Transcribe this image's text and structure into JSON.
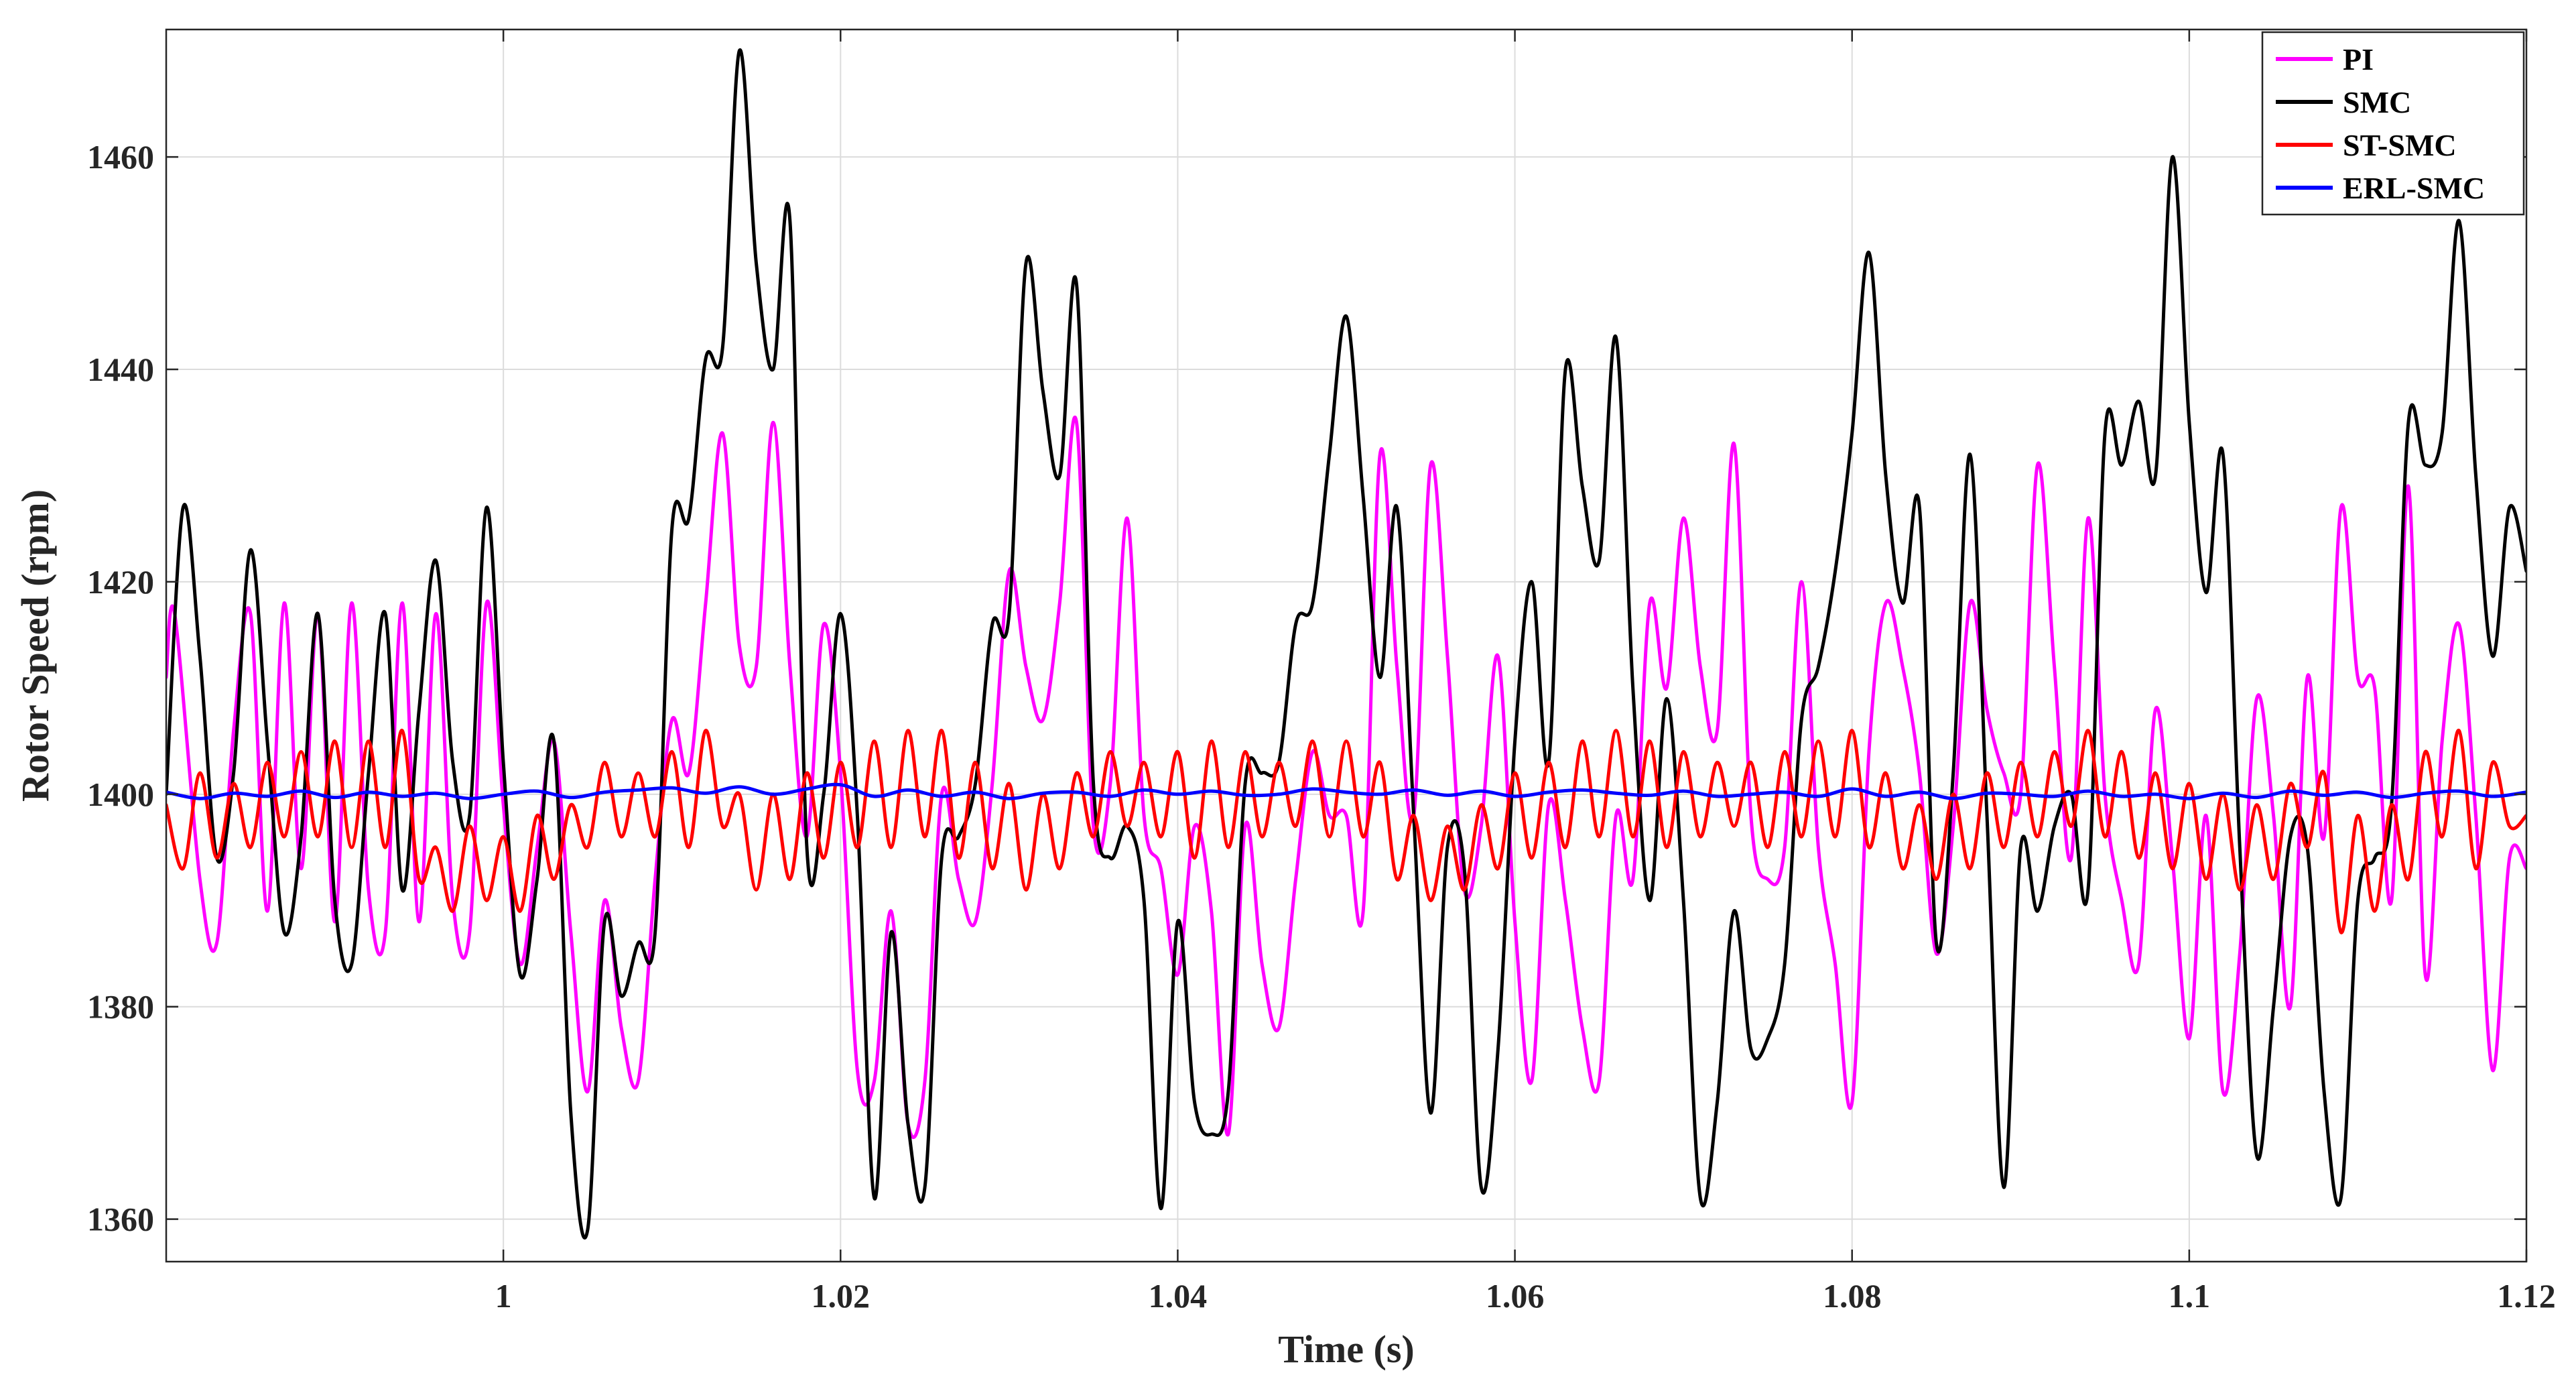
{
  "chart_data": {
    "type": "line",
    "xlabel": "Time (s)",
    "ylabel": "Rotor Speed (rpm)",
    "xlim": [
      0.98,
      1.12
    ],
    "ylim": [
      1356,
      1472
    ],
    "xticks": [
      1,
      1.02,
      1.04,
      1.06,
      1.08,
      1.1,
      1.12
    ],
    "xtick_labels": [
      "1",
      "1.02",
      "1.04",
      "1.06",
      "1.08",
      "1.1",
      "1.12"
    ],
    "yticks": [
      1360,
      1380,
      1400,
      1420,
      1440,
      1460
    ],
    "ytick_labels": [
      "1360",
      "1380",
      "1400",
      "1420",
      "1440",
      "1460"
    ],
    "grid": true,
    "legend_position": "top-right",
    "series": [
      {
        "name": "PI",
        "color": "#ff00ff",
        "x": [
          0.98,
          0.9805,
          0.982,
          0.983,
          0.984,
          0.985,
          0.986,
          0.987,
          0.988,
          0.989,
          0.99,
          0.991,
          0.992,
          0.993,
          0.994,
          0.995,
          0.996,
          0.997,
          0.998,
          0.999,
          1.0,
          1.001,
          1.002,
          1.003,
          1.004,
          1.005,
          1.006,
          1.007,
          1.008,
          1.009,
          1.01,
          1.011,
          1.012,
          1.013,
          1.014,
          1.015,
          1.016,
          1.017,
          1.018,
          1.019,
          1.02,
          1.021,
          1.022,
          1.023,
          1.024,
          1.025,
          1.026,
          1.027,
          1.028,
          1.029,
          1.03,
          1.031,
          1.032,
          1.033,
          1.034,
          1.035,
          1.036,
          1.037,
          1.038,
          1.039,
          1.04,
          1.041,
          1.042,
          1.043,
          1.044,
          1.045,
          1.046,
          1.047,
          1.048,
          1.049,
          1.05,
          1.051,
          1.052,
          1.053,
          1.054,
          1.055,
          1.056,
          1.057,
          1.058,
          1.059,
          1.06,
          1.061,
          1.062,
          1.063,
          1.064,
          1.065,
          1.066,
          1.067,
          1.068,
          1.069,
          1.07,
          1.071,
          1.072,
          1.073,
          1.074,
          1.075,
          1.076,
          1.077,
          1.078,
          1.079,
          1.08,
          1.081,
          1.082,
          1.083,
          1.084,
          1.085,
          1.086,
          1.087,
          1.088,
          1.089,
          1.09,
          1.091,
          1.092,
          1.093,
          1.094,
          1.095,
          1.096,
          1.097,
          1.098,
          1.099,
          1.1,
          1.101,
          1.102,
          1.103,
          1.104,
          1.105,
          1.106,
          1.107,
          1.108,
          1.109,
          1.11,
          1.111,
          1.112,
          1.113,
          1.114,
          1.115,
          1.116,
          1.117,
          1.118,
          1.119,
          1.12
        ],
        "y": [
          1411,
          1417,
          1392,
          1386,
          1406,
          1417,
          1389,
          1418,
          1393,
          1417,
          1388,
          1418,
          1391,
          1387,
          1418,
          1388,
          1417,
          1390,
          1387,
          1418,
          1399,
          1384,
          1395,
          1405,
          1387,
          1372,
          1390,
          1378,
          1373,
          1392,
          1407,
          1402,
          1418,
          1434,
          1414,
          1412,
          1435,
          1412,
          1396,
          1416,
          1402,
          1374,
          1373,
          1389,
          1369,
          1373,
          1400,
          1392,
          1388,
          1401,
          1421,
          1412,
          1407,
          1418,
          1435,
          1397,
          1401,
          1426,
          1398,
          1393,
          1383,
          1397,
          1389,
          1368,
          1397,
          1384,
          1378,
          1392,
          1404,
          1398,
          1398,
          1389,
          1432,
          1412,
          1398,
          1431,
          1413,
          1391,
          1397,
          1413,
          1388,
          1373,
          1399,
          1390,
          1378,
          1373,
          1398,
          1392,
          1418,
          1410,
          1426,
          1412,
          1406,
          1433,
          1398,
          1392,
          1395,
          1420,
          1395,
          1384,
          1371,
          1404,
          1418,
          1412,
          1402,
          1385,
          1397,
          1418,
          1408,
          1402,
          1400,
          1431,
          1412,
          1394,
          1426,
          1400,
          1390,
          1384,
          1408,
          1394,
          1377,
          1398,
          1372,
          1385,
          1409,
          1398,
          1380,
          1411,
          1396,
          1427,
          1411,
          1410,
          1390,
          1429,
          1383,
          1405,
          1416,
          1398,
          1374,
          1394,
          1393
        ]
      },
      {
        "name": "SMC",
        "color": "#000000",
        "x": [
          0.98,
          0.981,
          0.982,
          0.983,
          0.984,
          0.985,
          0.986,
          0.987,
          0.988,
          0.989,
          0.99,
          0.991,
          0.992,
          0.993,
          0.994,
          0.995,
          0.996,
          0.997,
          0.998,
          0.999,
          1.0,
          1.001,
          1.002,
          1.003,
          1.004,
          1.005,
          1.006,
          1.007,
          1.008,
          1.009,
          1.01,
          1.011,
          1.012,
          1.013,
          1.014,
          1.015,
          1.016,
          1.017,
          1.018,
          1.019,
          1.02,
          1.021,
          1.022,
          1.023,
          1.024,
          1.025,
          1.026,
          1.027,
          1.028,
          1.029,
          1.03,
          1.031,
          1.032,
          1.033,
          1.034,
          1.035,
          1.036,
          1.037,
          1.038,
          1.039,
          1.04,
          1.041,
          1.042,
          1.043,
          1.044,
          1.045,
          1.046,
          1.047,
          1.048,
          1.049,
          1.05,
          1.051,
          1.052,
          1.053,
          1.054,
          1.055,
          1.056,
          1.057,
          1.058,
          1.059,
          1.06,
          1.061,
          1.062,
          1.063,
          1.064,
          1.065,
          1.066,
          1.067,
          1.068,
          1.069,
          1.07,
          1.071,
          1.072,
          1.073,
          1.074,
          1.075,
          1.076,
          1.077,
          1.078,
          1.079,
          1.08,
          1.081,
          1.082,
          1.083,
          1.084,
          1.085,
          1.086,
          1.087,
          1.088,
          1.089,
          1.09,
          1.091,
          1.092,
          1.093,
          1.094,
          1.095,
          1.096,
          1.097,
          1.098,
          1.099,
          1.1,
          1.101,
          1.102,
          1.103,
          1.104,
          1.105,
          1.106,
          1.107,
          1.108,
          1.109,
          1.11,
          1.111,
          1.112,
          1.113,
          1.114,
          1.115,
          1.116,
          1.117,
          1.118,
          1.119,
          1.12
        ],
        "y": [
          1400,
          1427,
          1413,
          1394,
          1402,
          1423,
          1405,
          1387,
          1396,
          1417,
          1390,
          1384,
          1402,
          1417,
          1391,
          1408,
          1422,
          1403,
          1398,
          1427,
          1403,
          1383,
          1392,
          1405,
          1370,
          1359,
          1388,
          1381,
          1386,
          1387,
          1425,
          1426,
          1441,
          1442,
          1470,
          1450,
          1440,
          1454,
          1395,
          1400,
          1417,
          1398,
          1362,
          1387,
          1369,
          1363,
          1394,
          1396,
          1401,
          1416,
          1417,
          1450,
          1438,
          1430,
          1448,
          1401,
          1394,
          1397,
          1390,
          1361,
          1388,
          1371,
          1368,
          1372,
          1401,
          1402,
          1403,
          1416,
          1418,
          1432,
          1445,
          1428,
          1411,
          1427,
          1398,
          1370,
          1395,
          1393,
          1363,
          1376,
          1405,
          1420,
          1403,
          1440,
          1429,
          1422,
          1443,
          1410,
          1390,
          1409,
          1390,
          1362,
          1371,
          1389,
          1376,
          1377,
          1384,
          1407,
          1412,
          1421,
          1434,
          1451,
          1430,
          1418,
          1427,
          1386,
          1402,
          1432,
          1398,
          1363,
          1395,
          1389,
          1397,
          1400,
          1391,
          1434,
          1431,
          1437,
          1430,
          1460,
          1435,
          1419,
          1432,
          1395,
          1366,
          1380,
          1396,
          1395,
          1372,
          1362,
          1390,
          1394,
          1399,
          1435,
          1431,
          1434,
          1454,
          1430,
          1413,
          1427,
          1421
        ]
      },
      {
        "name": "ST-SMC",
        "color": "#ff0000",
        "x": [
          0.98,
          0.981,
          0.982,
          0.983,
          0.984,
          0.985,
          0.986,
          0.987,
          0.988,
          0.989,
          0.99,
          0.991,
          0.992,
          0.993,
          0.994,
          0.995,
          0.996,
          0.997,
          0.998,
          0.999,
          1.0,
          1.001,
          1.002,
          1.003,
          1.004,
          1.005,
          1.006,
          1.007,
          1.008,
          1.009,
          1.01,
          1.011,
          1.012,
          1.013,
          1.014,
          1.015,
          1.016,
          1.017,
          1.018,
          1.019,
          1.02,
          1.021,
          1.022,
          1.023,
          1.024,
          1.025,
          1.026,
          1.027,
          1.028,
          1.029,
          1.03,
          1.031,
          1.032,
          1.033,
          1.034,
          1.035,
          1.036,
          1.037,
          1.038,
          1.039,
          1.04,
          1.041,
          1.042,
          1.043,
          1.044,
          1.045,
          1.046,
          1.047,
          1.048,
          1.049,
          1.05,
          1.051,
          1.052,
          1.053,
          1.054,
          1.055,
          1.056,
          1.057,
          1.058,
          1.059,
          1.06,
          1.061,
          1.062,
          1.063,
          1.064,
          1.065,
          1.066,
          1.067,
          1.068,
          1.069,
          1.07,
          1.071,
          1.072,
          1.073,
          1.074,
          1.075,
          1.076,
          1.077,
          1.078,
          1.079,
          1.08,
          1.081,
          1.082,
          1.083,
          1.084,
          1.085,
          1.086,
          1.087,
          1.088,
          1.089,
          1.09,
          1.091,
          1.092,
          1.093,
          1.094,
          1.095,
          1.096,
          1.097,
          1.098,
          1.099,
          1.1,
          1.101,
          1.102,
          1.103,
          1.104,
          1.105,
          1.106,
          1.107,
          1.108,
          1.109,
          1.11,
          1.111,
          1.112,
          1.113,
          1.114,
          1.115,
          1.116,
          1.117,
          1.118,
          1.119,
          1.12
        ],
        "y": [
          1399,
          1393,
          1402,
          1394,
          1401,
          1395,
          1403,
          1396,
          1404,
          1396,
          1405,
          1395,
          1405,
          1395,
          1406,
          1392,
          1395,
          1389,
          1397,
          1390,
          1396,
          1389,
          1398,
          1392,
          1399,
          1395,
          1403,
          1396,
          1402,
          1396,
          1404,
          1395,
          1406,
          1397,
          1400,
          1391,
          1400,
          1392,
          1402,
          1394,
          1403,
          1395,
          1405,
          1395,
          1406,
          1396,
          1406,
          1394,
          1403,
          1393,
          1401,
          1391,
          1400,
          1393,
          1402,
          1396,
          1404,
          1397,
          1403,
          1396,
          1404,
          1394,
          1405,
          1395,
          1404,
          1396,
          1403,
          1397,
          1405,
          1396,
          1405,
          1396,
          1403,
          1392,
          1398,
          1390,
          1397,
          1391,
          1399,
          1393,
          1402,
          1394,
          1403,
          1395,
          1405,
          1396,
          1406,
          1396,
          1405,
          1395,
          1404,
          1396,
          1403,
          1397,
          1403,
          1395,
          1404,
          1396,
          1405,
          1396,
          1406,
          1395,
          1402,
          1393,
          1399,
          1392,
          1400,
          1393,
          1402,
          1395,
          1403,
          1396,
          1404,
          1397,
          1406,
          1396,
          1404,
          1394,
          1402,
          1393,
          1401,
          1392,
          1400,
          1391,
          1399,
          1392,
          1401,
          1395,
          1402,
          1387,
          1398,
          1389,
          1399,
          1392,
          1404,
          1396,
          1406,
          1393,
          1403,
          1397,
          1398
        ]
      },
      {
        "name": "ERL-SMC",
        "color": "#0000ff",
        "x": [
          0.98,
          0.982,
          0.984,
          0.986,
          0.988,
          0.99,
          0.992,
          0.994,
          0.996,
          0.998,
          1.0,
          1.002,
          1.004,
          1.006,
          1.008,
          1.01,
          1.012,
          1.014,
          1.016,
          1.018,
          1.02,
          1.022,
          1.024,
          1.026,
          1.028,
          1.03,
          1.032,
          1.034,
          1.036,
          1.038,
          1.04,
          1.042,
          1.044,
          1.046,
          1.048,
          1.05,
          1.052,
          1.054,
          1.056,
          1.058,
          1.06,
          1.062,
          1.064,
          1.066,
          1.068,
          1.07,
          1.072,
          1.074,
          1.076,
          1.078,
          1.08,
          1.082,
          1.084,
          1.086,
          1.088,
          1.09,
          1.092,
          1.094,
          1.096,
          1.098,
          1.1,
          1.102,
          1.104,
          1.106,
          1.108,
          1.11,
          1.112,
          1.114,
          1.116,
          1.118,
          1.12
        ],
        "y": [
          1400.2,
          1399.6,
          1400.1,
          1399.8,
          1400.3,
          1399.7,
          1400.2,
          1399.8,
          1400.1,
          1399.6,
          1400.0,
          1400.3,
          1399.7,
          1400.2,
          1400.4,
          1400.6,
          1400.1,
          1400.7,
          1400.0,
          1400.5,
          1400.9,
          1399.8,
          1400.4,
          1399.8,
          1400.2,
          1399.6,
          1400.1,
          1400.2,
          1399.8,
          1400.4,
          1400.0,
          1400.3,
          1399.9,
          1400.0,
          1400.5,
          1400.2,
          1400.0,
          1400.4,
          1399.9,
          1400.3,
          1399.8,
          1400.2,
          1400.4,
          1400.1,
          1399.9,
          1400.3,
          1399.8,
          1400.0,
          1400.2,
          1399.8,
          1400.5,
          1399.8,
          1400.2,
          1399.6,
          1400.1,
          1400.0,
          1399.8,
          1400.3,
          1399.8,
          1400.0,
          1399.6,
          1400.1,
          1399.7,
          1400.3,
          1399.9,
          1400.2,
          1399.7,
          1400.1,
          1400.3,
          1399.8,
          1400.2
        ]
      }
    ]
  }
}
